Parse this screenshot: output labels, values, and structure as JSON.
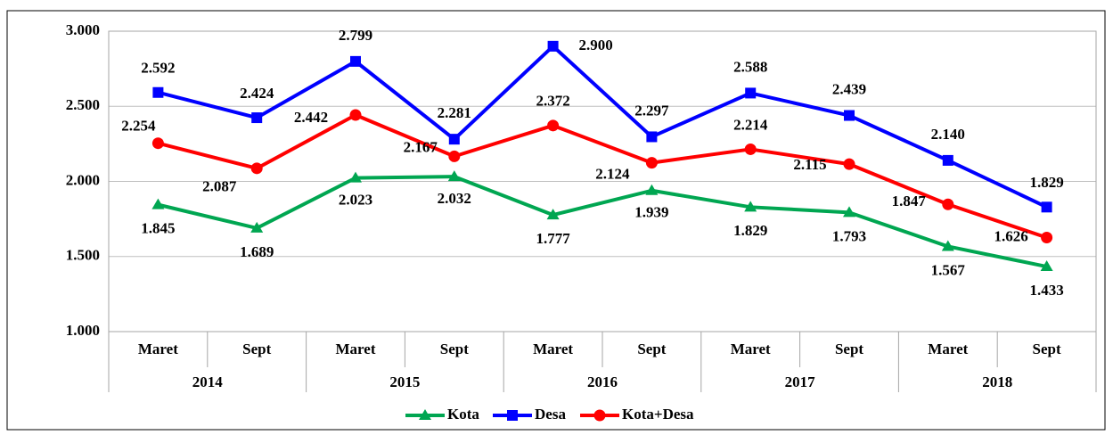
{
  "chart_data": {
    "type": "line",
    "categories": [
      "Maret",
      "Sept",
      "Maret",
      "Sept",
      "Maret",
      "Sept",
      "Maret",
      "Sept",
      "Maret",
      "Sept"
    ],
    "groups": [
      "2014",
      "2015",
      "2016",
      "2017",
      "2018"
    ],
    "series": [
      {
        "name": "Kota",
        "color": "#00a651",
        "marker": "triangle",
        "values": [
          1845,
          1689,
          2023,
          2032,
          1777,
          1939,
          1829,
          1793,
          1567,
          1433
        ],
        "value_labels": [
          "1.845",
          "1.689",
          "2.023",
          "2.032",
          "1.777",
          "1.939",
          "1.829",
          "1.793",
          "1.567",
          "1.433"
        ]
      },
      {
        "name": "Desa",
        "color": "#0000ff",
        "marker": "square",
        "values": [
          2592,
          2424,
          2799,
          2281,
          2900,
          2297,
          2588,
          2439,
          2140,
          1829
        ],
        "value_labels": [
          "2.592",
          "2.424",
          "2.799",
          "2.281",
          "2.900",
          "2.297",
          "2.588",
          "2.439",
          "2.140",
          "1.829"
        ]
      },
      {
        "name": "Kota+Desa",
        "color": "#ff0000",
        "marker": "circle",
        "values": [
          2254,
          2087,
          2442,
          2167,
          2372,
          2124,
          2214,
          2115,
          1847,
          1626
        ],
        "value_labels": [
          "2.254",
          "2.087",
          "2.442",
          "2.167",
          "2.372",
          "2.124",
          "2.214",
          "2.115",
          "1.847",
          "1.626"
        ]
      }
    ],
    "ylim": [
      1000,
      3000
    ],
    "yticks": [
      {
        "value": 1000,
        "label": "1.000"
      },
      {
        "value": 1500,
        "label": "1.500"
      },
      {
        "value": 2000,
        "label": "2.000"
      },
      {
        "value": 2500,
        "label": "2.500"
      },
      {
        "value": 3000,
        "label": "3.000"
      }
    ],
    "grid": true,
    "legend": "bottom"
  }
}
